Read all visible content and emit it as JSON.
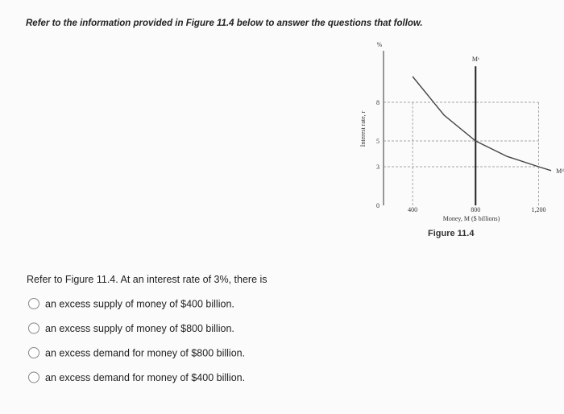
{
  "header": {
    "title": "Refer to the information provided in Figure 11.4 below to answer the questions that follow."
  },
  "chart_data": {
    "type": "line",
    "y_unit": "%",
    "ylabel": "Interest rate, r",
    "xlabel": "Money, M ($ billions)",
    "caption": "Figure 11.4",
    "xlim": [
      200,
      1300
    ],
    "ylim": [
      0,
      12
    ],
    "xticks": [
      400,
      800,
      {
        "value": 1200,
        "label": "1,200"
      }
    ],
    "yticks": [
      0,
      3,
      5,
      8
    ],
    "series": [
      {
        "name": "Mˢ",
        "color": "#222222",
        "x": [
          800,
          800
        ],
        "values": [
          0,
          10.8
        ]
      },
      {
        "name": "Mᵈ",
        "color": "#444444",
        "x": [
          400,
          600,
          800,
          1000,
          1200,
          1280
        ],
        "values": [
          10,
          7,
          5,
          3.8,
          3,
          2.7
        ]
      }
    ]
  },
  "question": {
    "text": "Refer to Figure 11.4. At an interest rate of 3%, there is",
    "options": [
      "an excess supply of money of $400 billion.",
      "an excess supply of money of $800 billion.",
      "an excess demand for money of $800 billion.",
      "an excess demand for money of $400 billion."
    ]
  }
}
